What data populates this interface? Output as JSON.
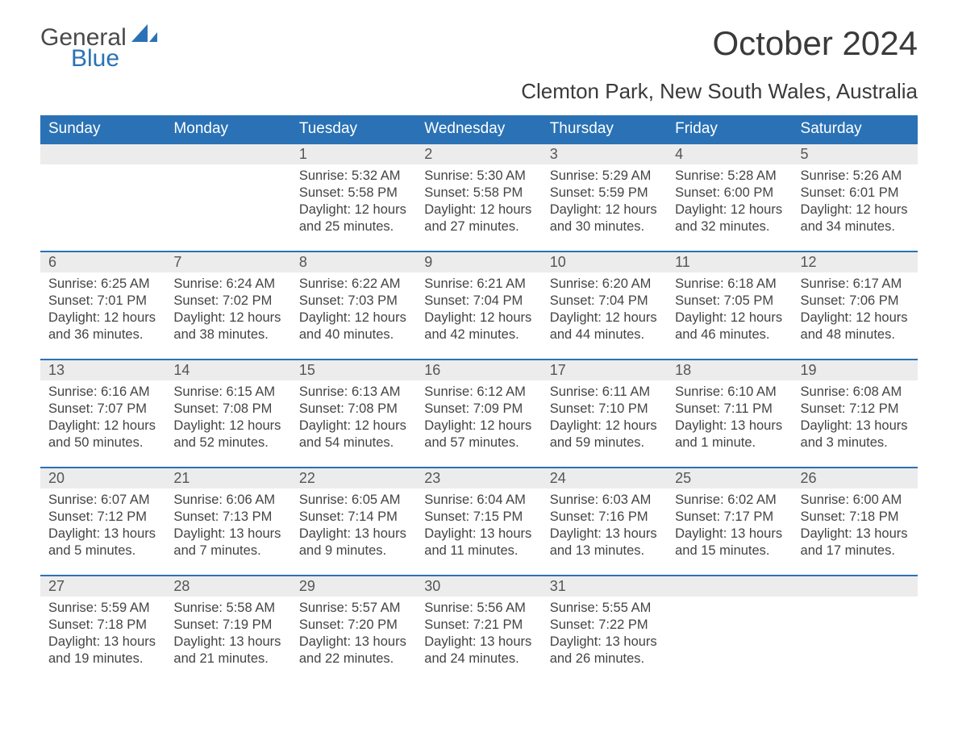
{
  "logo": {
    "line1": "General",
    "line2": "Blue",
    "sail_color": "#2a72b5"
  },
  "title": "October 2024",
  "subtitle": "Clemton Park, New South Wales, Australia",
  "columns": [
    "Sunday",
    "Monday",
    "Tuesday",
    "Wednesday",
    "Thursday",
    "Friday",
    "Saturday"
  ],
  "colors": {
    "header_bg": "#2a72b5",
    "header_text": "#ffffff",
    "daynum_bg": "#ececec",
    "daynum_border": "#2a72b5",
    "body_text": "#444444",
    "title_text": "#3a3a3a",
    "page_bg": "#ffffff"
  },
  "fonts": {
    "title_size_pt": 32,
    "subtitle_size_pt": 20,
    "header_size_pt": 14,
    "daynum_size_pt": 14,
    "body_size_pt": 12
  },
  "weeks": [
    [
      null,
      null,
      {
        "n": "1",
        "sunrise": "5:32 AM",
        "sunset": "5:58 PM",
        "daylight": "12 hours and 25 minutes."
      },
      {
        "n": "2",
        "sunrise": "5:30 AM",
        "sunset": "5:58 PM",
        "daylight": "12 hours and 27 minutes."
      },
      {
        "n": "3",
        "sunrise": "5:29 AM",
        "sunset": "5:59 PM",
        "daylight": "12 hours and 30 minutes."
      },
      {
        "n": "4",
        "sunrise": "5:28 AM",
        "sunset": "6:00 PM",
        "daylight": "12 hours and 32 minutes."
      },
      {
        "n": "5",
        "sunrise": "5:26 AM",
        "sunset": "6:01 PM",
        "daylight": "12 hours and 34 minutes."
      }
    ],
    [
      {
        "n": "6",
        "sunrise": "6:25 AM",
        "sunset": "7:01 PM",
        "daylight": "12 hours and 36 minutes."
      },
      {
        "n": "7",
        "sunrise": "6:24 AM",
        "sunset": "7:02 PM",
        "daylight": "12 hours and 38 minutes."
      },
      {
        "n": "8",
        "sunrise": "6:22 AM",
        "sunset": "7:03 PM",
        "daylight": "12 hours and 40 minutes."
      },
      {
        "n": "9",
        "sunrise": "6:21 AM",
        "sunset": "7:04 PM",
        "daylight": "12 hours and 42 minutes."
      },
      {
        "n": "10",
        "sunrise": "6:20 AM",
        "sunset": "7:04 PM",
        "daylight": "12 hours and 44 minutes."
      },
      {
        "n": "11",
        "sunrise": "6:18 AM",
        "sunset": "7:05 PM",
        "daylight": "12 hours and 46 minutes."
      },
      {
        "n": "12",
        "sunrise": "6:17 AM",
        "sunset": "7:06 PM",
        "daylight": "12 hours and 48 minutes."
      }
    ],
    [
      {
        "n": "13",
        "sunrise": "6:16 AM",
        "sunset": "7:07 PM",
        "daylight": "12 hours and 50 minutes."
      },
      {
        "n": "14",
        "sunrise": "6:15 AM",
        "sunset": "7:08 PM",
        "daylight": "12 hours and 52 minutes."
      },
      {
        "n": "15",
        "sunrise": "6:13 AM",
        "sunset": "7:08 PM",
        "daylight": "12 hours and 54 minutes."
      },
      {
        "n": "16",
        "sunrise": "6:12 AM",
        "sunset": "7:09 PM",
        "daylight": "12 hours and 57 minutes."
      },
      {
        "n": "17",
        "sunrise": "6:11 AM",
        "sunset": "7:10 PM",
        "daylight": "12 hours and 59 minutes."
      },
      {
        "n": "18",
        "sunrise": "6:10 AM",
        "sunset": "7:11 PM",
        "daylight": "13 hours and 1 minute."
      },
      {
        "n": "19",
        "sunrise": "6:08 AM",
        "sunset": "7:12 PM",
        "daylight": "13 hours and 3 minutes."
      }
    ],
    [
      {
        "n": "20",
        "sunrise": "6:07 AM",
        "sunset": "7:12 PM",
        "daylight": "13 hours and 5 minutes."
      },
      {
        "n": "21",
        "sunrise": "6:06 AM",
        "sunset": "7:13 PM",
        "daylight": "13 hours and 7 minutes."
      },
      {
        "n": "22",
        "sunrise": "6:05 AM",
        "sunset": "7:14 PM",
        "daylight": "13 hours and 9 minutes."
      },
      {
        "n": "23",
        "sunrise": "6:04 AM",
        "sunset": "7:15 PM",
        "daylight": "13 hours and 11 minutes."
      },
      {
        "n": "24",
        "sunrise": "6:03 AM",
        "sunset": "7:16 PM",
        "daylight": "13 hours and 13 minutes."
      },
      {
        "n": "25",
        "sunrise": "6:02 AM",
        "sunset": "7:17 PM",
        "daylight": "13 hours and 15 minutes."
      },
      {
        "n": "26",
        "sunrise": "6:00 AM",
        "sunset": "7:18 PM",
        "daylight": "13 hours and 17 minutes."
      }
    ],
    [
      {
        "n": "27",
        "sunrise": "5:59 AM",
        "sunset": "7:18 PM",
        "daylight": "13 hours and 19 minutes."
      },
      {
        "n": "28",
        "sunrise": "5:58 AM",
        "sunset": "7:19 PM",
        "daylight": "13 hours and 21 minutes."
      },
      {
        "n": "29",
        "sunrise": "5:57 AM",
        "sunset": "7:20 PM",
        "daylight": "13 hours and 22 minutes."
      },
      {
        "n": "30",
        "sunrise": "5:56 AM",
        "sunset": "7:21 PM",
        "daylight": "13 hours and 24 minutes."
      },
      {
        "n": "31",
        "sunrise": "5:55 AM",
        "sunset": "7:22 PM",
        "daylight": "13 hours and 26 minutes."
      },
      null,
      null
    ]
  ]
}
